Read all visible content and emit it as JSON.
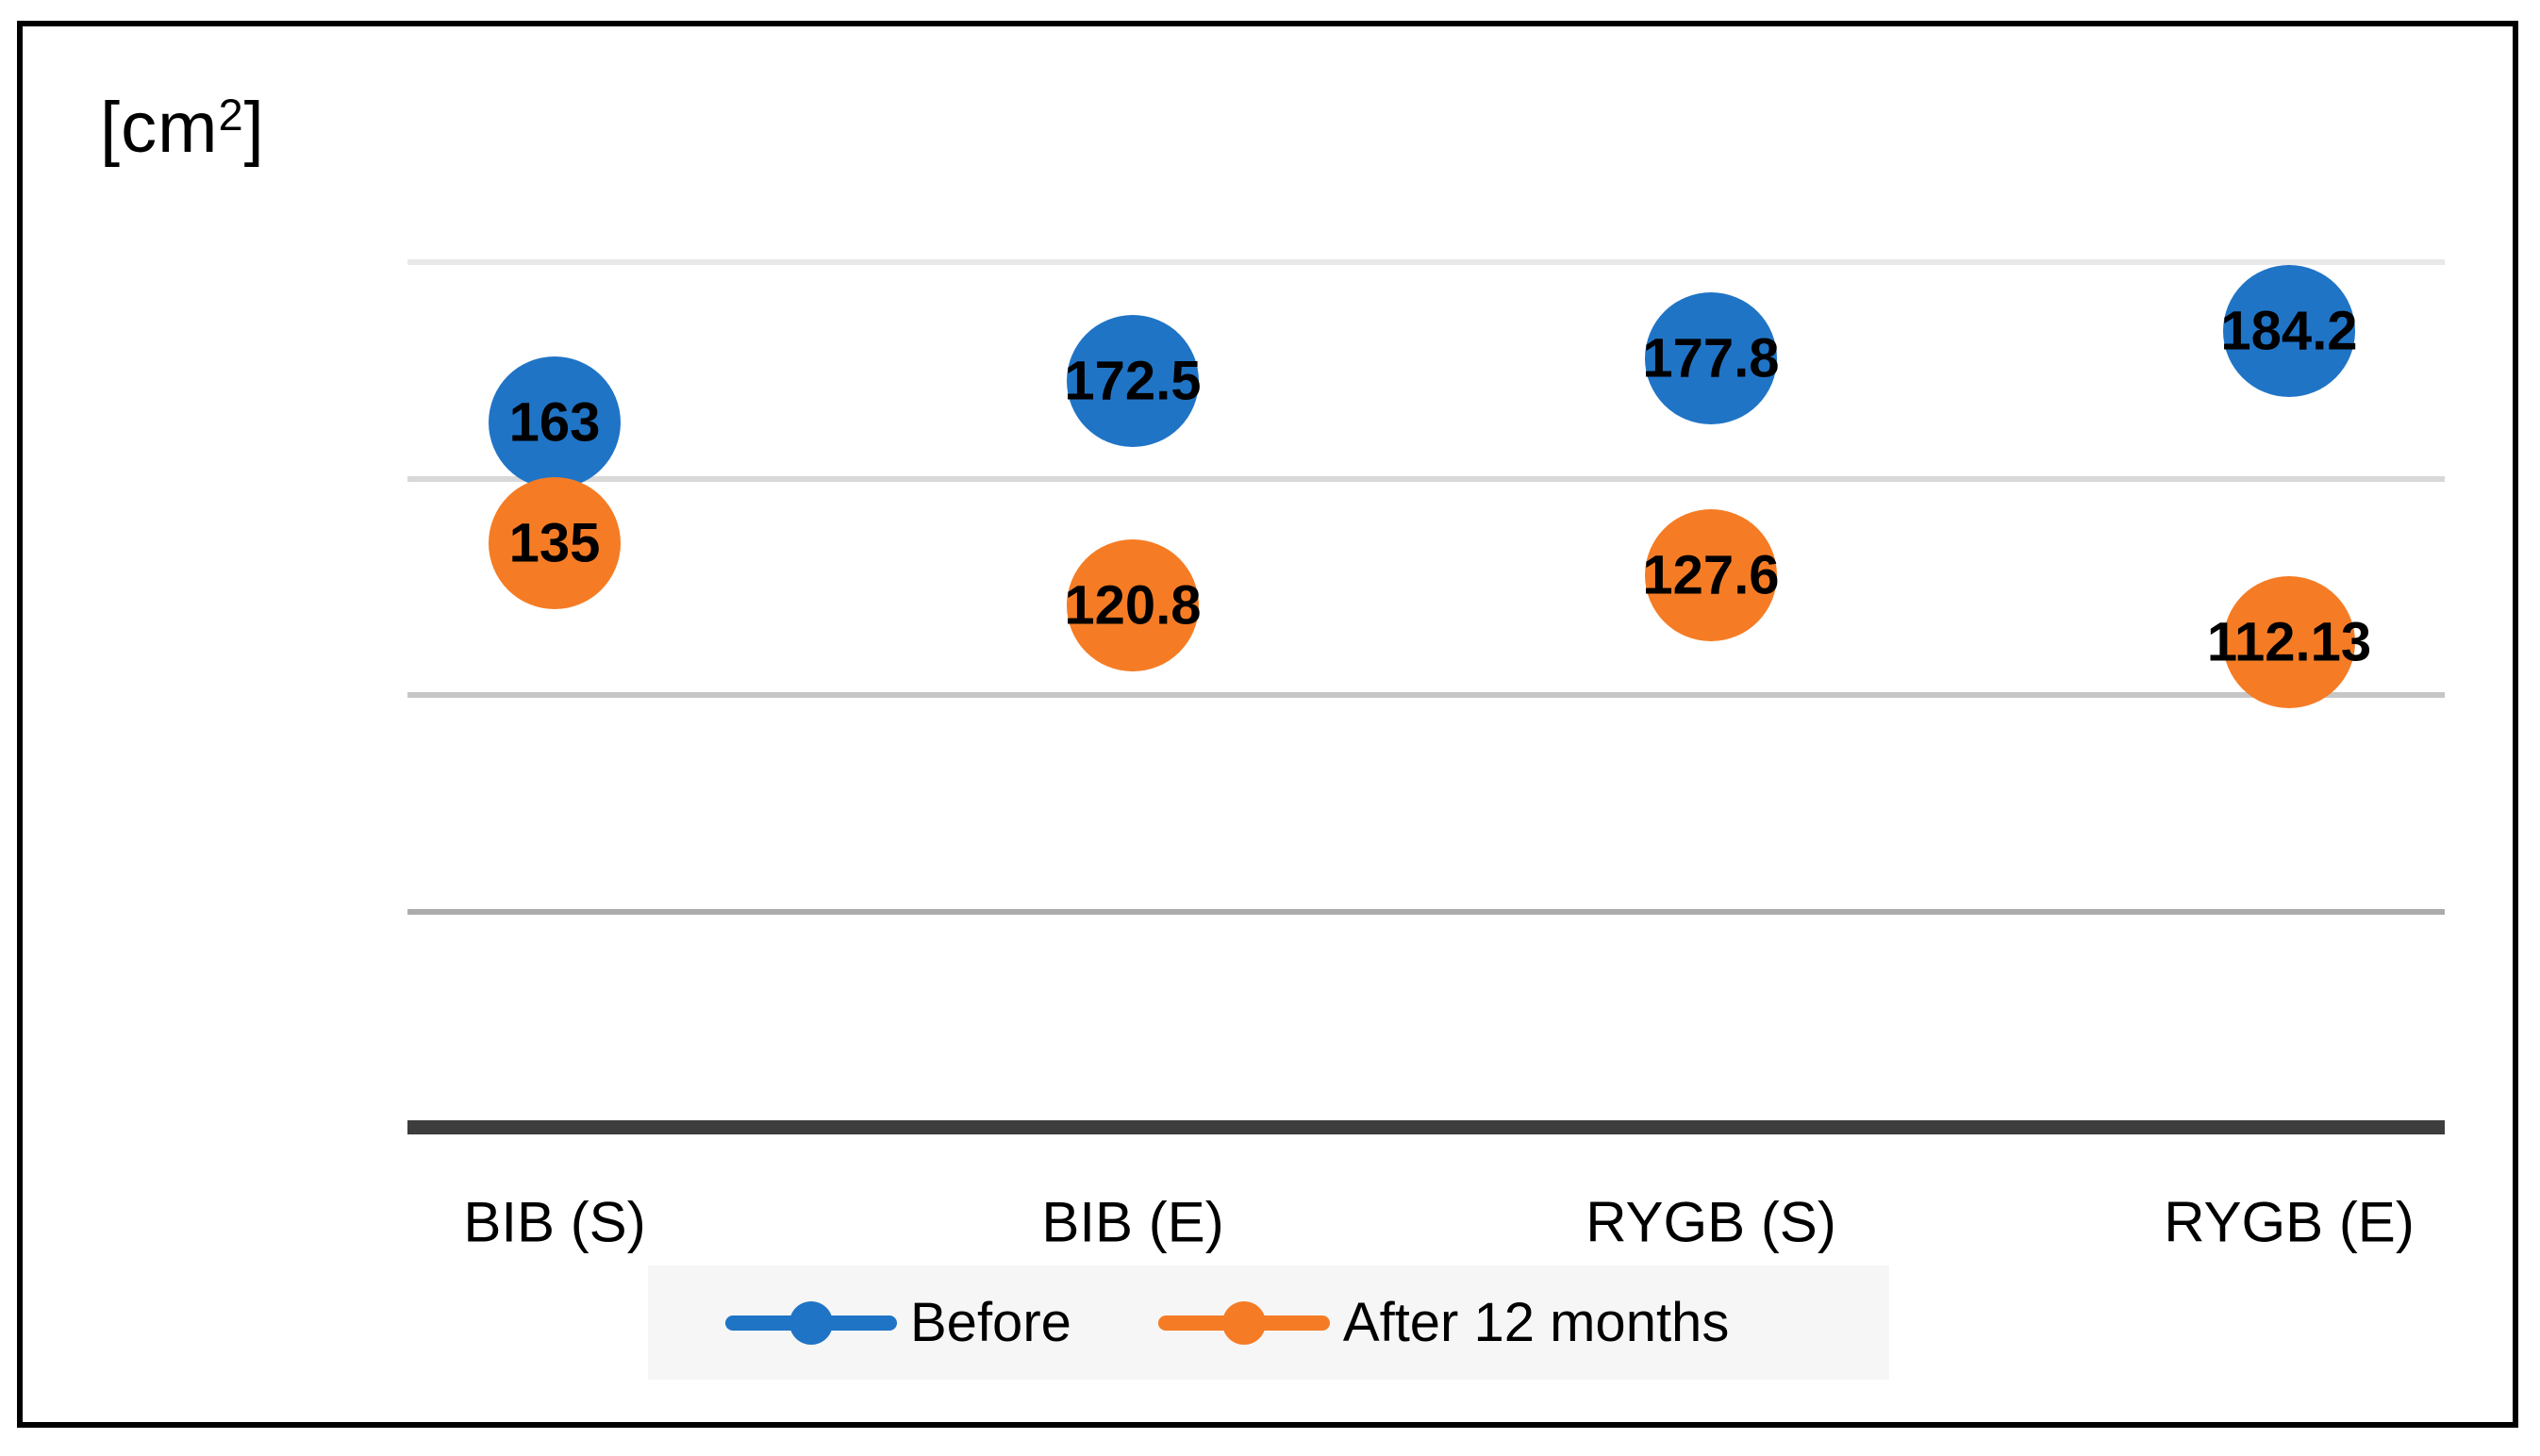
{
  "unit_label": {
    "prefix": "[cm",
    "superscript": "2",
    "suffix": "]"
  },
  "chart_data": {
    "type": "scatter",
    "title": "",
    "ylabel": "[cm²]",
    "categories": [
      "BIB (S)",
      "BIB (E)",
      "RYGB (S)",
      "RYGB (E)"
    ],
    "series": [
      {
        "name": "Before",
        "color": "#2074c6",
        "values": [
          163,
          172.5,
          177.8,
          184.2
        ]
      },
      {
        "name": "After 12 months",
        "color": "#f57c25",
        "values": [
          135,
          120.8,
          127.6,
          112.13
        ]
      }
    ],
    "ylim": [
      0,
      200
    ],
    "gridline_values": [
      50,
      100,
      150,
      200
    ],
    "grid": true,
    "legend_position": "bottom",
    "marker_style": "filled-circle",
    "data_labels": "centered-on-point"
  },
  "colors": {
    "series_before": "#2074c6",
    "series_after_12_months": "#f57c25",
    "axis_line": "#3d3d3d",
    "legend_background": "#f6f6f6",
    "figure_border": "#000000",
    "gridline_50": "#acacac",
    "gridline_100": "#c6c6c6",
    "gridline_150": "#d8d8d8",
    "gridline_200": "#e9e9e9"
  }
}
